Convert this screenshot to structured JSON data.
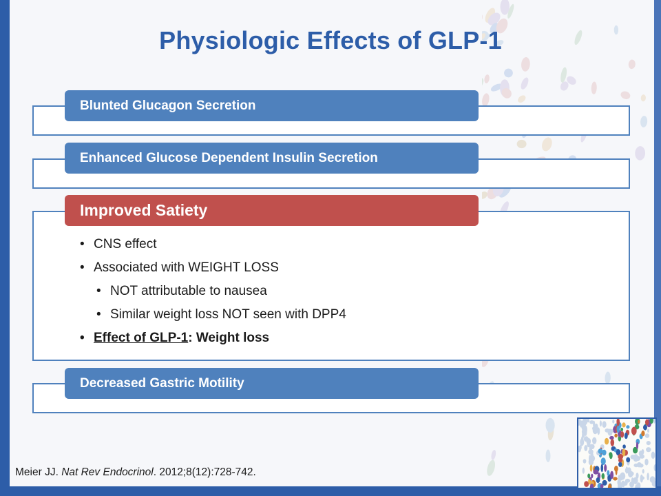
{
  "title": "Physiologic Effects of GLP-1",
  "items": [
    {
      "label": "Blunted Glucagon Secretion"
    },
    {
      "label": "Enhanced Glucose Dependent Insulin Secretion"
    },
    {
      "label": "Improved Satiety"
    },
    {
      "label": "Decreased Gastric Motility"
    }
  ],
  "satiety_bullets": {
    "b1": "CNS effect",
    "b2": "Associated with WEIGHT LOSS",
    "b2a": "NOT attributable to nausea",
    "b2b": "Similar weight loss NOT seen with DPP4",
    "b3_underlined": "Effect of GLP-1",
    "b3_rest": ": Weight loss"
  },
  "citation": {
    "author": "Meier JJ. ",
    "journal": "Nat Rev Endocrinol",
    "details": ". 2012;8(12):728-742."
  },
  "colors": {
    "title": "#2d5da8",
    "tab_blue": "#4f81bd",
    "tab_red": "#c0504d",
    "frame_blue": "#2d5da8"
  }
}
